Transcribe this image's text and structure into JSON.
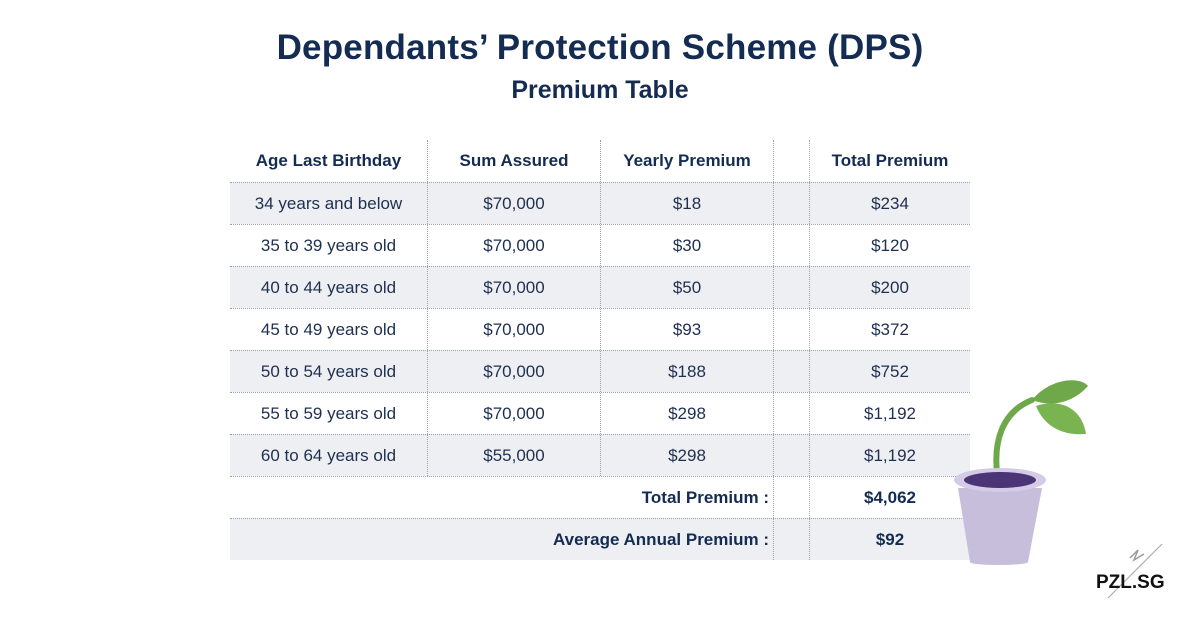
{
  "header": {
    "title": "Dependants’ Protection Scheme (DPS)",
    "subtitle": "Premium Table"
  },
  "table": {
    "columns": [
      "Age Last Birthday",
      "Sum Assured",
      "Yearly Premium",
      "Total Premium"
    ],
    "rows": [
      [
        "34 years and below",
        "$70,000",
        "$18",
        "$234"
      ],
      [
        "35 to 39 years old",
        "$70,000",
        "$30",
        "$120"
      ],
      [
        "40 to 44 years old",
        "$70,000",
        "$50",
        "$200"
      ],
      [
        "45 to 49 years old",
        "$70,000",
        "$93",
        "$372"
      ],
      [
        "50 to 54 years old",
        "$70,000",
        "$188",
        "$752"
      ],
      [
        "55 to 59 years old",
        "$70,000",
        "$298",
        "$1,192"
      ],
      [
        "60 to 64 years old",
        "$55,000",
        "$298",
        "$1,192"
      ]
    ],
    "summary": [
      {
        "label": "Total Premium :",
        "value": "$4,062"
      },
      {
        "label": "Average Annual Premium :",
        "value": "$92"
      }
    ]
  },
  "brand": {
    "name": "PZL.SG"
  },
  "colors": {
    "heading": "#142c52",
    "shade": "#eeeff3",
    "leaf": "#6fa84a",
    "pot": "#c6bedb",
    "soil": "#4b3577"
  }
}
